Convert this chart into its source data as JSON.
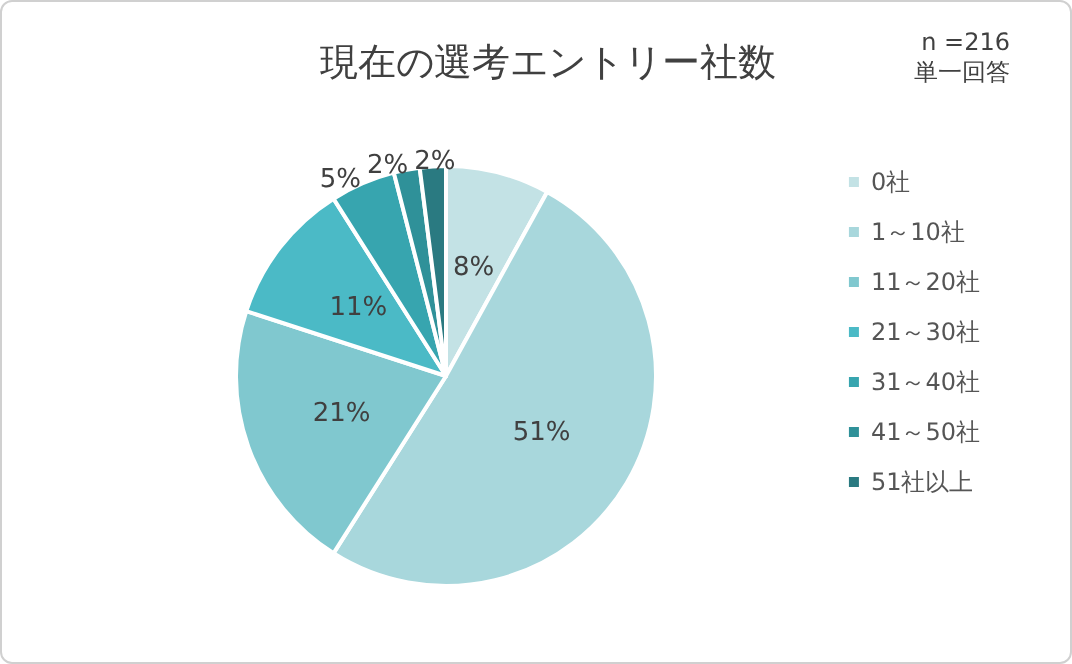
{
  "chart_data": {
    "type": "pie",
    "title": "現在の選考エントリー社数",
    "annotations": [
      "n =216",
      "単一回答"
    ],
    "categories": [
      "0社",
      "1～10社",
      "11～20社",
      "21～30社",
      "31～40社",
      "41～50社",
      "51社以上"
    ],
    "values": [
      8,
      51,
      21,
      11,
      5,
      2,
      2
    ],
    "colors": [
      "#c3e2e5",
      "#a8d7dc",
      "#80c8cf",
      "#4bbac6",
      "#37a5af",
      "#2f9199",
      "#2a7a81"
    ],
    "value_labels": [
      "8%",
      "51%",
      "21%",
      "11%",
      "5%",
      "2%",
      "2%"
    ],
    "legend": "right"
  }
}
